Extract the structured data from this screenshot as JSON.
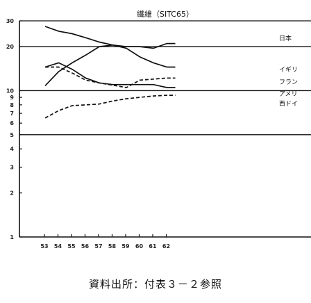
{
  "chart_data": {
    "type": "line",
    "title": "繊維（SITC65）",
    "x": [
      53,
      54,
      55,
      56,
      57,
      58,
      59,
      60,
      61,
      62
    ],
    "x_tick_labels": [
      "53",
      "54",
      "55",
      "56",
      "57",
      "58",
      "59",
      "60",
      "61",
      "62"
    ],
    "y_scale": "log",
    "ylim": [
      1,
      30
    ],
    "y_ticks": [
      1,
      2,
      3,
      4,
      5,
      6,
      7,
      8,
      9,
      10,
      20,
      30
    ],
    "y_tick_labels": [
      "1",
      "2",
      "3",
      "4",
      "5",
      "6",
      "7",
      "8",
      "9",
      "10",
      "20",
      "30"
    ],
    "grid": "horizontal lines at 5, 10, 20",
    "series": [
      {
        "name": "日本",
        "values": [
          27.5,
          25.5,
          24.5,
          23.0,
          21.5,
          20.5,
          19.5,
          17.0,
          15.5,
          14.5
        ],
        "style": "solid"
      },
      {
        "name": "イギリス",
        "values": [
          10.8,
          13.5,
          15.5,
          17.5,
          20.0,
          20.5,
          20.0,
          20.0,
          19.5,
          21.0
        ],
        "style": "solid"
      },
      {
        "name": "フランス",
        "values": [
          14.5,
          14.5,
          13.2,
          11.8,
          11.3,
          10.9,
          10.5,
          11.8,
          12.0,
          12.2
        ],
        "style": "dashed"
      },
      {
        "name": "アメリカ",
        "values": [
          14.5,
          15.5,
          14.0,
          12.2,
          11.3,
          11.0,
          11.0,
          11.0,
          11.0,
          10.5
        ],
        "style": "solid"
      },
      {
        "name": "西ドイツ",
        "values": [
          6.5,
          7.3,
          7.9,
          8.0,
          8.1,
          8.5,
          8.8,
          9.0,
          9.2,
          9.3
        ],
        "style": "dashed"
      }
    ],
    "series_labels": [
      "日本",
      "イギリ",
      "フラン",
      "アメリ",
      "西ドイ"
    ]
  },
  "source_note": "資料出所：付表３－２参照"
}
